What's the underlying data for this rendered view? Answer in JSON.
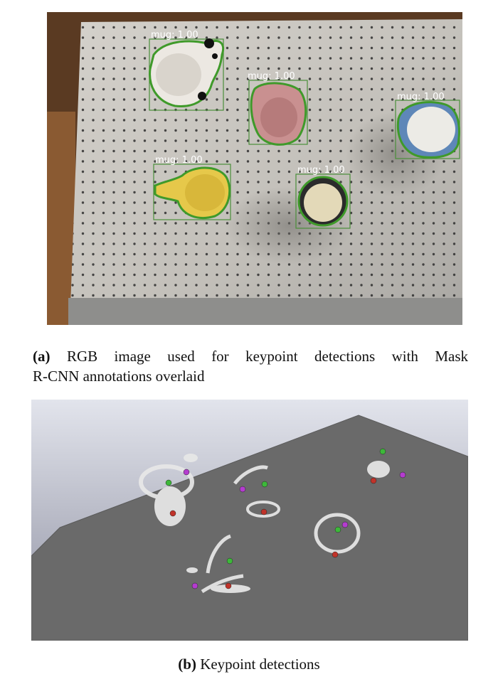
{
  "figure_a": {
    "detection_label": "mug: 1.00",
    "detection_count": 5,
    "colors": {
      "mask_outline": "#3f9a2a",
      "box_outline": "#4a8f3a",
      "board": "#c9c6c0",
      "wood": "#8a5a32",
      "mug_white": "#ece8e2",
      "mug_pink": "#c99090",
      "mug_blue": "#5e87b8",
      "mug_yellow": "#e6c84a",
      "mug_cream": "#e3d9b8"
    }
  },
  "caption_a": {
    "tag": "(a)",
    "line1": "RGB image used for keypoint detections with Mask",
    "line2": "R-CNN annotations overlaid"
  },
  "figure_b": {
    "keypoint_colors": {
      "green": "#3db83a",
      "purple": "#b43ccf",
      "red": "#c0332a"
    },
    "plane_color": "#6a6a6a",
    "background_top": "#e2e4ec",
    "background_bottom": "#8d8fa0"
  },
  "caption_b": {
    "tag": "(b)",
    "text": "Keypoint detections"
  }
}
